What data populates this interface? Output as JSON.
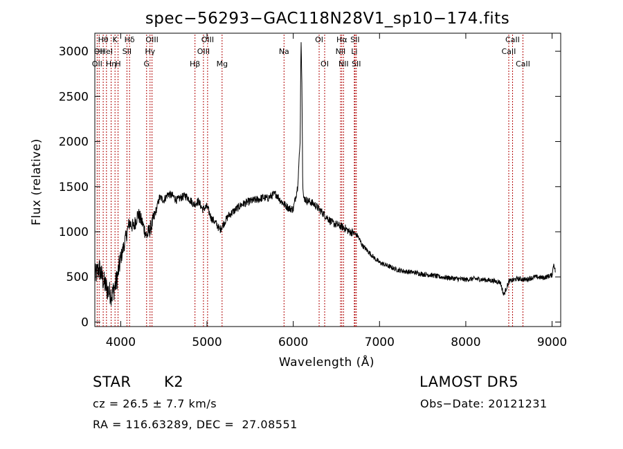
{
  "chart_data": {
    "type": "line",
    "title": "spec−56293−GAC118N28V1_sp10−174.fits",
    "xlabel": "Wavelength (Å)",
    "ylabel": "Flux (relative)",
    "xlim": [
      3700,
      9100
    ],
    "ylim": [
      -50,
      3200
    ],
    "x_ticks": [
      4000,
      5000,
      6000,
      7000,
      8000,
      9000
    ],
    "y_ticks": [
      0,
      500,
      1000,
      1500,
      2000,
      2500,
      3000
    ],
    "grid": false,
    "series": [
      {
        "x": [
          3700,
          3750,
          3800,
          3850,
          3900,
          3950,
          4000,
          4050,
          4100,
          4150,
          4200,
          4250,
          4300,
          4350,
          4400,
          4450,
          4500,
          4550,
          4600,
          4650,
          4700,
          4750,
          4800,
          4850,
          4900,
          4950,
          5000,
          5050,
          5100,
          5150,
          5200,
          5250,
          5300,
          5350,
          5400,
          5450,
          5500,
          5550,
          5600,
          5650,
          5700,
          5750,
          5800,
          5850,
          5900,
          5950,
          6000,
          6050,
          6080,
          6090,
          6100,
          6110,
          6120,
          6150,
          6200,
          6250,
          6300,
          6350,
          6400,
          6450,
          6500,
          6550,
          6600,
          6650,
          6700,
          6750,
          6800,
          6850,
          6900,
          6950,
          7000,
          7100,
          7200,
          7300,
          7400,
          7500,
          7600,
          7700,
          7800,
          7900,
          8000,
          8100,
          8200,
          8300,
          8400,
          8440,
          8500,
          8600,
          8700,
          8800,
          8900,
          9000,
          9020,
          9040
        ],
        "y": [
          500,
          600,
          450,
          350,
          300,
          450,
          700,
          900,
          1100,
          1050,
          1200,
          1100,
          950,
          1050,
          1200,
          1380,
          1350,
          1420,
          1400,
          1350,
          1380,
          1400,
          1360,
          1300,
          1340,
          1250,
          1280,
          1150,
          1100,
          1020,
          1100,
          1180,
          1220,
          1260,
          1300,
          1320,
          1340,
          1350,
          1360,
          1380,
          1370,
          1400,
          1420,
          1350,
          1300,
          1260,
          1250,
          1500,
          2000,
          3150,
          2650,
          1500,
          1380,
          1350,
          1330,
          1300,
          1250,
          1200,
          1150,
          1100,
          1080,
          1060,
          1040,
          1000,
          990,
          950,
          850,
          800,
          750,
          700,
          660,
          620,
          580,
          560,
          550,
          530,
          520,
          500,
          490,
          480,
          470,
          480,
          470,
          460,
          440,
          300,
          450,
          480,
          470,
          500,
          490,
          520,
          650,
          550
        ]
      }
    ],
    "lines": [
      {
        "x": 3727,
        "labels": [
          "OII"
        ],
        "rows": [
          2
        ]
      },
      {
        "x": 3750,
        "labels": [
          "OII"
        ],
        "rows": [
          1
        ]
      },
      {
        "x": 3797,
        "labels": [
          "Hθ"
        ],
        "rows": [
          0
        ]
      },
      {
        "x": 3835,
        "labels": [
          "HeI"
        ],
        "rows": [
          1
        ]
      },
      {
        "x": 3889,
        "labels": [
          "Hη"
        ],
        "rows": [
          2
        ]
      },
      {
        "x": 3934,
        "labels": [
          "K"
        ],
        "rows": [
          0
        ]
      },
      {
        "x": 3969,
        "labels": [
          "H"
        ],
        "rows": [
          2
        ]
      },
      {
        "x": 4072,
        "labels": [
          "SII"
        ],
        "rows": [
          1
        ]
      },
      {
        "x": 4102,
        "labels": [
          "Hδ"
        ],
        "rows": [
          0
        ]
      },
      {
        "x": 4300,
        "labels": [
          "G"
        ],
        "rows": [
          2
        ]
      },
      {
        "x": 4340,
        "labels": [
          "Hγ"
        ],
        "rows": [
          1
        ]
      },
      {
        "x": 4363,
        "labels": [
          "OIII"
        ],
        "rows": [
          0
        ]
      },
      {
        "x": 4861,
        "labels": [
          "Hβ"
        ],
        "rows": [
          2
        ]
      },
      {
        "x": 4959,
        "labels": [
          "OIII"
        ],
        "rows": [
          1
        ]
      },
      {
        "x": 5007,
        "labels": [
          "OIII"
        ],
        "rows": [
          0
        ]
      },
      {
        "x": 5175,
        "labels": [
          "Mg"
        ],
        "rows": [
          2
        ]
      },
      {
        "x": 5893,
        "labels": [
          "Na"
        ],
        "rows": [
          1
        ]
      },
      {
        "x": 6300,
        "labels": [
          "OI"
        ],
        "rows": [
          0
        ]
      },
      {
        "x": 6364,
        "labels": [
          "OI"
        ],
        "rows": [
          2
        ]
      },
      {
        "x": 6548,
        "labels": [
          "NII"
        ],
        "rows": [
          1
        ]
      },
      {
        "x": 6563,
        "labels": [
          "Hα"
        ],
        "rows": [
          0
        ]
      },
      {
        "x": 6583,
        "labels": [
          "NII"
        ],
        "rows": [
          2
        ]
      },
      {
        "x": 6708,
        "labels": [
          "Li"
        ],
        "rows": [
          1
        ]
      },
      {
        "x": 6716,
        "labels": [
          "SII"
        ],
        "rows": [
          0
        ]
      },
      {
        "x": 6731,
        "labels": [
          "SII"
        ],
        "rows": [
          2
        ]
      },
      {
        "x": 8498,
        "labels": [
          "CaII"
        ],
        "rows": [
          1
        ]
      },
      {
        "x": 8542,
        "labels": [
          "CaII"
        ],
        "rows": [
          0
        ]
      },
      {
        "x": 8662,
        "labels": [
          "CaII"
        ],
        "rows": [
          2
        ]
      }
    ],
    "line_color": "#b00000",
    "series_color": "#000000"
  },
  "info": {
    "class_label": "STAR",
    "subclass": "K2",
    "survey": "LAMOST DR5",
    "cz": "cz = 26.5 ± 7.7 km/s",
    "obs_date": "Obs−Date: 20121231",
    "coords": "RA = 116.63289, DEC =  27.08551"
  }
}
